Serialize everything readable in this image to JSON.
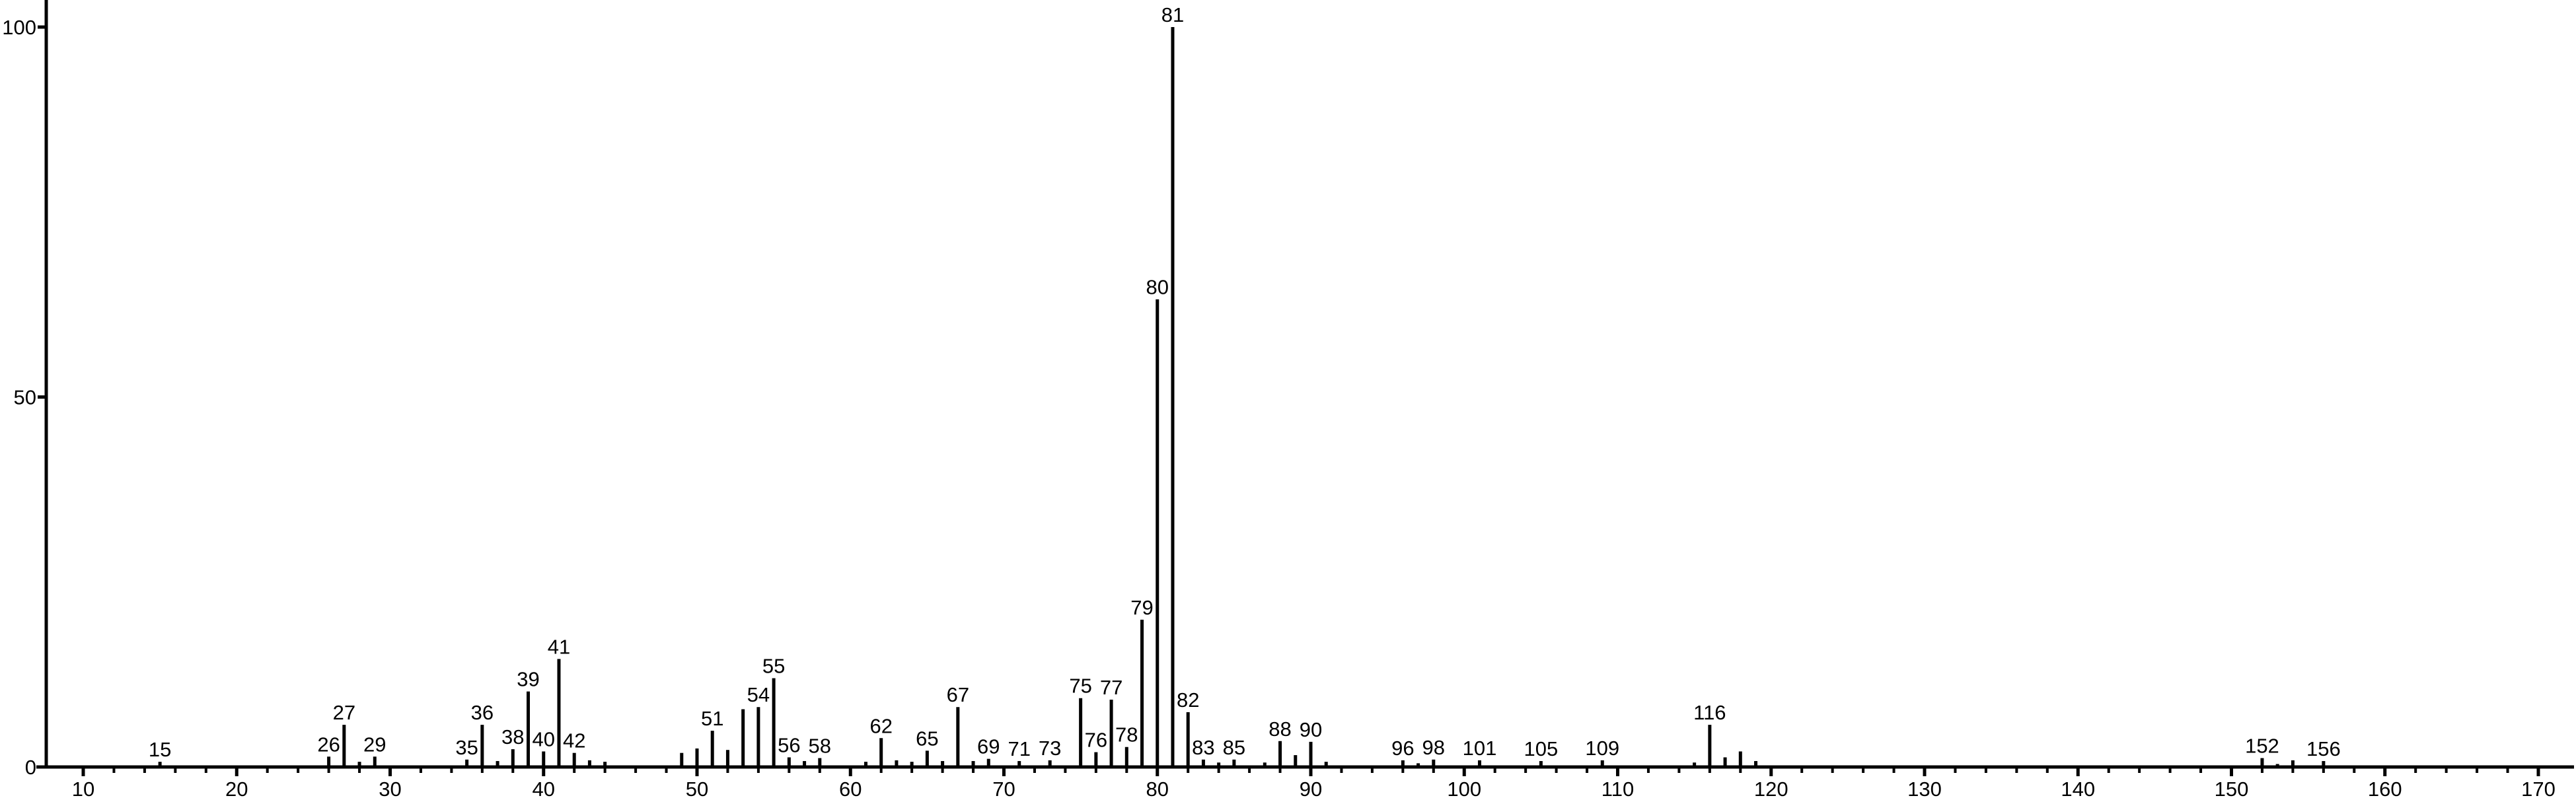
{
  "figure": {
    "background": "#ffffff",
    "axis_color": "#000000",
    "bar_color": "#000000",
    "text_color": "#000000"
  },
  "chart_data": {
    "type": "bar",
    "chart_kind": "mass-spectrum",
    "title": "",
    "xlabel": "",
    "ylabel": "",
    "xlim": [
      7.5,
      172.5
    ],
    "ylim": [
      0,
      100
    ],
    "x_major_ticks": [
      10,
      20,
      30,
      40,
      50,
      60,
      70,
      80,
      90,
      100,
      110,
      120,
      130,
      140,
      150,
      160,
      170
    ],
    "x_minor_tick_step": 2,
    "y_ticks": [
      0,
      50,
      100
    ],
    "grid": false,
    "legend": false,
    "peaks": [
      {
        "mz": 15,
        "intensity": 0.7,
        "label": "15"
      },
      {
        "mz": 26,
        "intensity": 1.4,
        "label": "26"
      },
      {
        "mz": 27,
        "intensity": 5.7,
        "label": "27"
      },
      {
        "mz": 28,
        "intensity": 0.7,
        "label": ""
      },
      {
        "mz": 29,
        "intensity": 1.4,
        "label": "29"
      },
      {
        "mz": 35,
        "intensity": 1.0,
        "label": "35"
      },
      {
        "mz": 36,
        "intensity": 5.7,
        "label": "36"
      },
      {
        "mz": 37,
        "intensity": 0.8,
        "label": ""
      },
      {
        "mz": 38,
        "intensity": 2.4,
        "label": "38"
      },
      {
        "mz": 39,
        "intensity": 10.2,
        "label": "39"
      },
      {
        "mz": 40,
        "intensity": 2.1,
        "label": "40"
      },
      {
        "mz": 41,
        "intensity": 14.6,
        "label": "41"
      },
      {
        "mz": 42,
        "intensity": 1.9,
        "label": "42"
      },
      {
        "mz": 43,
        "intensity": 0.9,
        "label": ""
      },
      {
        "mz": 44,
        "intensity": 0.7,
        "label": ""
      },
      {
        "mz": 49,
        "intensity": 1.9,
        "label": ""
      },
      {
        "mz": 50,
        "intensity": 2.5,
        "label": ""
      },
      {
        "mz": 51,
        "intensity": 4.9,
        "label": "51"
      },
      {
        "mz": 52,
        "intensity": 2.3,
        "label": ""
      },
      {
        "mz": 53,
        "intensity": 7.8,
        "label": ""
      },
      {
        "mz": 54,
        "intensity": 8.1,
        "label": "54"
      },
      {
        "mz": 55,
        "intensity": 12.0,
        "label": "55"
      },
      {
        "mz": 56,
        "intensity": 1.3,
        "label": "56"
      },
      {
        "mz": 57,
        "intensity": 0.8,
        "label": ""
      },
      {
        "mz": 58,
        "intensity": 1.2,
        "label": "58"
      },
      {
        "mz": 61,
        "intensity": 0.7,
        "label": ""
      },
      {
        "mz": 62,
        "intensity": 3.9,
        "label": "62"
      },
      {
        "mz": 63,
        "intensity": 0.9,
        "label": ""
      },
      {
        "mz": 64,
        "intensity": 0.7,
        "label": ""
      },
      {
        "mz": 65,
        "intensity": 2.2,
        "label": "65"
      },
      {
        "mz": 66,
        "intensity": 0.8,
        "label": ""
      },
      {
        "mz": 67,
        "intensity": 8.1,
        "label": "67"
      },
      {
        "mz": 68,
        "intensity": 0.8,
        "label": ""
      },
      {
        "mz": 69,
        "intensity": 1.1,
        "label": "69"
      },
      {
        "mz": 71,
        "intensity": 0.8,
        "label": "71"
      },
      {
        "mz": 73,
        "intensity": 0.9,
        "label": "73"
      },
      {
        "mz": 75,
        "intensity": 9.3,
        "label": "75"
      },
      {
        "mz": 76,
        "intensity": 2.0,
        "label": "76"
      },
      {
        "mz": 77,
        "intensity": 9.1,
        "label": "77"
      },
      {
        "mz": 78,
        "intensity": 2.7,
        "label": "78"
      },
      {
        "mz": 79,
        "intensity": 19.9,
        "label": "79"
      },
      {
        "mz": 80,
        "intensity": 63.2,
        "label": "80"
      },
      {
        "mz": 81,
        "intensity": 100.0,
        "label": "81"
      },
      {
        "mz": 82,
        "intensity": 7.4,
        "label": "82"
      },
      {
        "mz": 83,
        "intensity": 1.0,
        "label": "83"
      },
      {
        "mz": 84,
        "intensity": 0.6,
        "label": ""
      },
      {
        "mz": 85,
        "intensity": 1.0,
        "label": "85"
      },
      {
        "mz": 87,
        "intensity": 0.6,
        "label": ""
      },
      {
        "mz": 88,
        "intensity": 3.5,
        "label": "88"
      },
      {
        "mz": 89,
        "intensity": 1.6,
        "label": ""
      },
      {
        "mz": 90,
        "intensity": 3.4,
        "label": "90"
      },
      {
        "mz": 91,
        "intensity": 0.7,
        "label": ""
      },
      {
        "mz": 96,
        "intensity": 0.9,
        "label": "96"
      },
      {
        "mz": 97,
        "intensity": 0.5,
        "label": ""
      },
      {
        "mz": 98,
        "intensity": 1.0,
        "label": "98"
      },
      {
        "mz": 101,
        "intensity": 0.9,
        "label": "101"
      },
      {
        "mz": 105,
        "intensity": 0.8,
        "label": "105"
      },
      {
        "mz": 109,
        "intensity": 0.9,
        "label": "109"
      },
      {
        "mz": 115,
        "intensity": 0.6,
        "label": ""
      },
      {
        "mz": 116,
        "intensity": 5.7,
        "label": "116"
      },
      {
        "mz": 117,
        "intensity": 1.3,
        "label": ""
      },
      {
        "mz": 118,
        "intensity": 2.1,
        "label": ""
      },
      {
        "mz": 119,
        "intensity": 0.8,
        "label": ""
      },
      {
        "mz": 152,
        "intensity": 1.2,
        "label": "152"
      },
      {
        "mz": 153,
        "intensity": 0.4,
        "label": ""
      },
      {
        "mz": 154,
        "intensity": 0.9,
        "label": ""
      },
      {
        "mz": 156,
        "intensity": 0.8,
        "label": "156"
      }
    ]
  }
}
